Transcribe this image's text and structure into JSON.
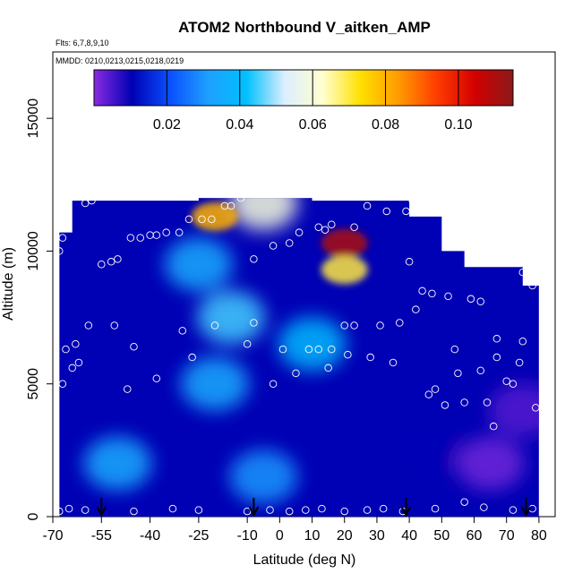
{
  "chart_data": {
    "type": "heatmap",
    "title": "ATOM2 Northbound V_aitken_AMP",
    "flights_note": "Flts: 6,7,8,9,10",
    "dates_note": "MMDD: 0210,0213,0215,0218,0219",
    "xlabel": "Latitude (deg N)",
    "ylabel": "Altitude (m)",
    "xlim": [
      -70,
      85
    ],
    "ylim": [
      0,
      17500
    ],
    "xticks": [
      -70,
      -55,
      -40,
      -25,
      -10,
      0,
      10,
      20,
      30,
      40,
      50,
      60,
      70,
      80
    ],
    "yticks": [
      0,
      5000,
      10000,
      15000
    ],
    "colorbar": {
      "range": [
        0.0,
        0.115
      ],
      "ticks": [
        0.02,
        0.04,
        0.06,
        0.08,
        0.1
      ],
      "tick_labels": [
        "0.02",
        "0.04",
        "0.06",
        "0.08",
        "0.10"
      ],
      "colors": [
        "#8a2be2",
        "#0000b4",
        "#0a50ff",
        "#1ea0ff",
        "#00c0ff",
        "#dceeff",
        "#ffffd0",
        "#ffe000",
        "#ff9a00",
        "#ff3c00",
        "#d20000",
        "#8b1a1a"
      ]
    },
    "grid": false,
    "ocean_basin_markers_lat": [
      -55,
      -8,
      39,
      76
    ],
    "lat_bands": [
      {
        "lat_min": -68,
        "lat_max": -64,
        "alt_top": 10700
      },
      {
        "lat_min": -64,
        "lat_max": -25,
        "alt_top": 11900
      },
      {
        "lat_min": -25,
        "lat_max": 10,
        "alt_top": 12000
      },
      {
        "lat_min": 10,
        "lat_max": 40,
        "alt_top": 11900
      },
      {
        "lat_min": 40,
        "lat_max": 50,
        "alt_top": 11300
      },
      {
        "lat_min": 50,
        "lat_max": 57,
        "alt_top": 10000
      },
      {
        "lat_min": 57,
        "lat_max": 75,
        "alt_top": 9400
      },
      {
        "lat_min": 75,
        "lat_max": 80,
        "alt_top": 8700
      }
    ],
    "features": [
      {
        "lat": 20,
        "alt": 10300,
        "value": 0.11
      },
      {
        "lat": 20,
        "alt": 9300,
        "value": 0.07
      },
      {
        "lat": -20,
        "alt": 11300,
        "value": 0.08
      },
      {
        "lat": -5,
        "alt": 11800,
        "value": 0.06
      },
      {
        "lat": -15,
        "alt": 7500,
        "value": 0.045
      },
      {
        "lat": -20,
        "alt": 5000,
        "value": 0.035
      },
      {
        "lat": 10,
        "alt": 6500,
        "value": 0.04
      },
      {
        "lat": -25,
        "alt": 9500,
        "value": 0.035
      },
      {
        "lat": -50,
        "alt": 2000,
        "value": 0.035
      },
      {
        "lat": -5,
        "alt": 1500,
        "value": 0.03
      },
      {
        "lat": 65,
        "alt": 2000,
        "value": 0.002
      },
      {
        "lat": 75,
        "alt": 4000,
        "value": 0.004
      },
      {
        "lat": 45,
        "alt": 2500,
        "value": 0.01
      }
    ],
    "observation_points": [
      [
        -68,
        200
      ],
      [
        -65,
        300
      ],
      [
        -60,
        250
      ],
      [
        -45,
        200
      ],
      [
        -33,
        300
      ],
      [
        -25,
        250
      ],
      [
        -10,
        200
      ],
      [
        -3,
        250
      ],
      [
        3,
        200
      ],
      [
        8,
        250
      ],
      [
        13,
        300
      ],
      [
        20,
        200
      ],
      [
        27,
        250
      ],
      [
        32,
        300
      ],
      [
        38,
        200
      ],
      [
        48,
        300
      ],
      [
        57,
        550
      ],
      [
        63,
        350
      ],
      [
        72,
        250
      ],
      [
        78,
        300
      ],
      [
        -67,
        5000
      ],
      [
        -66,
        6300
      ],
      [
        -64,
        5600
      ],
      [
        -63,
        6500
      ],
      [
        -62,
        5800
      ],
      [
        -59,
        7200
      ],
      [
        -51,
        7200
      ],
      [
        -47,
        4800
      ],
      [
        -45,
        6400
      ],
      [
        -38,
        5200
      ],
      [
        -30,
        7000
      ],
      [
        -27,
        6000
      ],
      [
        -20,
        7200
      ],
      [
        -10,
        6500
      ],
      [
        -8,
        7300
      ],
      [
        -2,
        5000
      ],
      [
        1,
        6300
      ],
      [
        5,
        5400
      ],
      [
        9,
        6300
      ],
      [
        12,
        6300
      ],
      [
        15,
        5600
      ],
      [
        16,
        6300
      ],
      [
        21,
        6100
      ],
      [
        23,
        7200
      ],
      [
        28,
        6000
      ],
      [
        31,
        7200
      ],
      [
        35,
        5800
      ],
      [
        37,
        7300
      ],
      [
        46,
        4600
      ],
      [
        48,
        4800
      ],
      [
        51,
        4200
      ],
      [
        54,
        6300
      ],
      [
        55,
        5400
      ],
      [
        57,
        4300
      ],
      [
        62,
        5500
      ],
      [
        64,
        4300
      ],
      [
        66,
        3400
      ],
      [
        67,
        6000
      ],
      [
        67,
        6700
      ],
      [
        70,
        5100
      ],
      [
        72,
        5000
      ],
      [
        74,
        5800
      ],
      [
        75,
        6600
      ],
      [
        78,
        8700
      ],
      [
        79,
        4100
      ],
      [
        -68,
        10000
      ],
      [
        -67,
        10500
      ],
      [
        -55,
        9500
      ],
      [
        -52,
        9600
      ],
      [
        -50,
        9700
      ],
      [
        -46,
        10500
      ],
      [
        -43,
        10500
      ],
      [
        -40,
        10600
      ],
      [
        -38,
        10600
      ],
      [
        -35,
        10700
      ],
      [
        -31,
        10700
      ],
      [
        -28,
        11200
      ],
      [
        -24,
        11200
      ],
      [
        -21,
        11200
      ],
      [
        -17,
        11700
      ],
      [
        -15,
        11700
      ],
      [
        -8,
        9700
      ],
      [
        -2,
        10200
      ],
      [
        3,
        10300
      ],
      [
        6,
        10700
      ],
      [
        12,
        10900
      ],
      [
        14,
        10800
      ],
      [
        16,
        11000
      ],
      [
        23,
        10900
      ],
      [
        27,
        11700
      ],
      [
        33,
        11500
      ],
      [
        39,
        11500
      ],
      [
        40,
        9600
      ],
      [
        44,
        8500
      ],
      [
        47,
        8400
      ],
      [
        52,
        8300
      ],
      [
        59,
        8200
      ],
      [
        62,
        8100
      ],
      [
        75,
        9200
      ],
      [
        -60,
        11800
      ],
      [
        -58,
        11900
      ],
      [
        -12,
        12000
      ],
      [
        41,
        11900
      ],
      [
        20,
        7200
      ],
      [
        42,
        7800
      ]
    ]
  }
}
